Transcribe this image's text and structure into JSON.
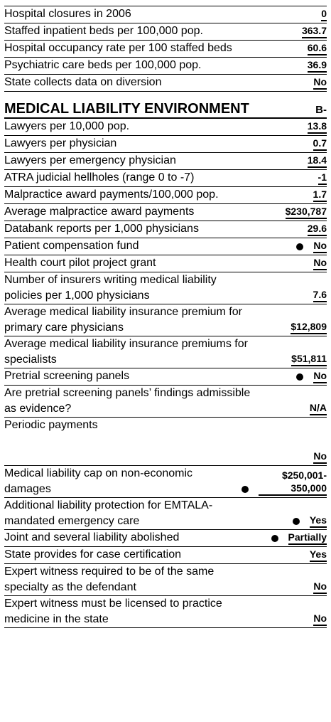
{
  "top_rows": [
    {
      "label": "Hospital closures in 2006",
      "value": "0"
    },
    {
      "label": "Staffed inpatient beds per 100,000 pop.",
      "value": "363.7"
    },
    {
      "label": "Hospital occupancy rate per 100 staffed beds",
      "value": "60.6"
    },
    {
      "label": "Psychiatric care beds per 100,000 pop.",
      "value": "36.9"
    },
    {
      "label": "State collects data on diversion",
      "value": "No"
    }
  ],
  "section": {
    "title": "MEDICAL LIABILITY ENVIRONMENT",
    "grade": "B-",
    "rows": [
      {
        "label": "Lawyers per 10,000 pop.",
        "value": "13.8"
      },
      {
        "label": "Lawyers per physician",
        "value": "0.7"
      },
      {
        "label": "Lawyers per emergency physician",
        "value": "18.4"
      },
      {
        "label": "ATRA judicial hellholes (range 0 to -7)",
        "value": "-1"
      },
      {
        "label": "Malpractice award payments/100,000 pop.",
        "value": "1.7"
      },
      {
        "label": "Average malpractice award payments",
        "value": "$230,787"
      },
      {
        "label": "Databank reports per 1,000 physicians",
        "value": "29.6"
      },
      {
        "label": "Patient compensation fund",
        "value": "No",
        "dot": true
      },
      {
        "label": "Health court pilot project grant",
        "value": "No"
      },
      {
        "label": "Number of insurers writing medical liability policies per 1,000 physicians",
        "value": "7.6"
      },
      {
        "label": "Average medical liability insurance premium for primary care physicians",
        "value": "$12,809"
      },
      {
        "label": "Average medical liability insurance premiums for specialists",
        "value": "$51,811"
      },
      {
        "label": "Pretrial screening panels",
        "value": "No",
        "dot": true
      },
      {
        "label": "Are pretrial screening panels’ findings admissible as evidence?",
        "value": "N/A"
      },
      {
        "label": "Periodic payments",
        "value": "No"
      },
      {
        "label": "Medical liability cap on non-economic damages",
        "value": "$250,001-350,000",
        "dot": true
      },
      {
        "label": "Additional liability protection for EMTALA-mandated emergency care",
        "value": "Yes",
        "dot": true
      },
      {
        "label": "Joint and several liability abolished",
        "value": "Partially",
        "dot": true
      },
      {
        "label": "State provides for case certification",
        "value": "Yes"
      },
      {
        "label": "Expert witness required to be of the same specialty as the defendant",
        "value": "No"
      },
      {
        "label": "Expert witness must be licensed to practice medicine in the state",
        "value": "No"
      }
    ]
  }
}
